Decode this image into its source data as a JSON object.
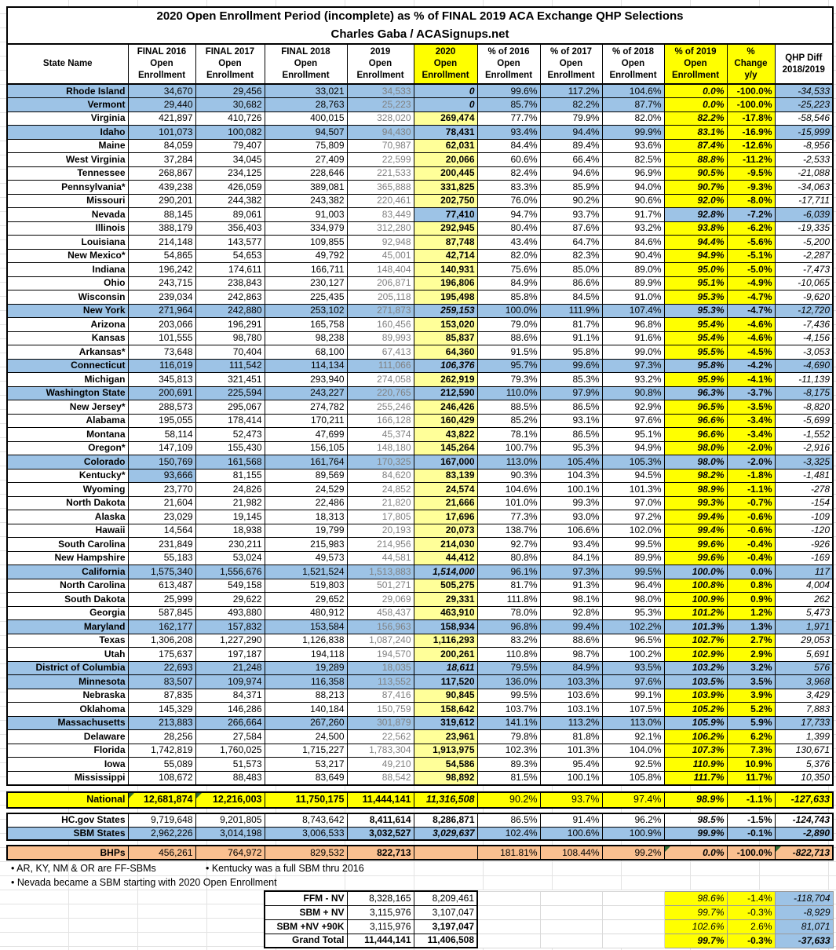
{
  "title": {
    "line1": "2020 Open Enrollment Period (incomplete) as % of FINAL 2019 ACA Exchange QHP Selections",
    "line2": "Charles Gaba / ACASignups.net"
  },
  "columns": [
    {
      "key": "state",
      "label": "State Name"
    },
    {
      "key": "final-2016",
      "label": "FINAL 2016\nOpen\nEnrollment"
    },
    {
      "key": "final-2017",
      "label": "FINAL 2017\nOpen\nEnrollment"
    },
    {
      "key": "final-2018",
      "label": "FINAL 2018\nOpen\nEnrollment"
    },
    {
      "key": "oe-2019",
      "label": "2019\nOpen\nEnrollment"
    },
    {
      "key": "oe-2020",
      "label": "2020\nOpen\nEnrollment"
    },
    {
      "key": "pct-2016",
      "label": "% of 2016\nOpen\nEnrollment"
    },
    {
      "key": "pct-2017",
      "label": "% of 2017\nOpen\nEnrollment"
    },
    {
      "key": "pct-2018",
      "label": "% of 2018\nOpen\nEnrollment"
    },
    {
      "key": "pct-2019",
      "label": "% of 2019\nOpen\nEnrollment"
    },
    {
      "key": "pct-change",
      "label": "%\nChange\ny/y"
    },
    {
      "key": "qhp-diff",
      "label": "QHP Diff\n2018/2019"
    }
  ],
  "main_table": {
    "rows": [
      {
        "state": "Rhode Island",
        "bg": "b",
        "est": 1,
        "yp": 1,
        "values": [
          "34,670",
          "29,456",
          "33,021",
          "34,533",
          "0",
          "99.6%",
          "117.2%",
          "104.6%",
          "0.0%",
          "-100.0%",
          "-34,533"
        ]
      },
      {
        "state": "Vermont",
        "bg": "b",
        "est": 1,
        "yp": 1,
        "values": [
          "29,440",
          "30,682",
          "28,763",
          "25,223",
          "0",
          "85.7%",
          "82.2%",
          "87.7%",
          "0.0%",
          "-100.0%",
          "-25,223"
        ]
      },
      {
        "state": "Virginia",
        "bg": "w",
        "values": [
          "421,897",
          "410,726",
          "400,015",
          "328,020",
          "269,474",
          "77.7%",
          "79.9%",
          "82.0%",
          "82.2%",
          "-17.8%",
          "-58,546"
        ]
      },
      {
        "state": "Idaho",
        "bg": "b",
        "yp": 1,
        "values": [
          "101,073",
          "100,082",
          "94,507",
          "94,430",
          "78,431",
          "93.4%",
          "94.4%",
          "99.9%",
          "83.1%",
          "-16.9%",
          "-15,999"
        ]
      },
      {
        "state": "Maine",
        "bg": "w",
        "values": [
          "84,059",
          "79,407",
          "75,809",
          "70,987",
          "62,031",
          "84.4%",
          "89.4%",
          "93.6%",
          "87.4%",
          "-12.6%",
          "-8,956"
        ]
      },
      {
        "state": "West Virginia",
        "bg": "w",
        "values": [
          "37,284",
          "34,045",
          "27,409",
          "22,599",
          "20,066",
          "60.6%",
          "66.4%",
          "82.5%",
          "88.8%",
          "-11.2%",
          "-2,533"
        ]
      },
      {
        "state": "Tennessee",
        "bg": "w",
        "values": [
          "268,867",
          "234,125",
          "228,646",
          "221,533",
          "200,445",
          "82.4%",
          "94.6%",
          "96.9%",
          "90.5%",
          "-9.5%",
          "-21,088"
        ]
      },
      {
        "state": "Pennsylvania*",
        "bg": "w",
        "values": [
          "439,238",
          "426,059",
          "389,081",
          "365,888",
          "331,825",
          "83.3%",
          "85.9%",
          "94.0%",
          "90.7%",
          "-9.3%",
          "-34,063"
        ]
      },
      {
        "state": "Missouri",
        "bg": "w",
        "values": [
          "290,201",
          "244,382",
          "243,382",
          "220,461",
          "202,750",
          "76.0%",
          "90.2%",
          "90.6%",
          "92.0%",
          "-8.0%",
          "-17,711"
        ]
      },
      {
        "state": "Nevada",
        "bg": "w",
        "sp": "nv",
        "values": [
          "88,145",
          "89,061",
          "91,003",
          "83,449",
          "77,410",
          "94.7%",
          "93.7%",
          "91.7%",
          "92.8%",
          "-7.2%",
          "-6,039"
        ]
      },
      {
        "state": "Illinois",
        "bg": "w",
        "values": [
          "388,179",
          "356,403",
          "334,979",
          "312,280",
          "292,945",
          "80.4%",
          "87.6%",
          "93.2%",
          "93.8%",
          "-6.2%",
          "-19,335"
        ]
      },
      {
        "state": "Louisiana",
        "bg": "w",
        "values": [
          "214,148",
          "143,577",
          "109,855",
          "92,948",
          "87,748",
          "43.4%",
          "64.7%",
          "84.6%",
          "94.4%",
          "-5.6%",
          "-5,200"
        ]
      },
      {
        "state": "New Mexico*",
        "bg": "w",
        "values": [
          "54,865",
          "54,653",
          "49,792",
          "45,001",
          "42,714",
          "82.0%",
          "82.3%",
          "90.4%",
          "94.9%",
          "-5.1%",
          "-2,287"
        ]
      },
      {
        "state": "Indiana",
        "bg": "w",
        "values": [
          "196,242",
          "174,611",
          "166,711",
          "148,404",
          "140,931",
          "75.6%",
          "85.0%",
          "89.0%",
          "95.0%",
          "-5.0%",
          "-7,473"
        ]
      },
      {
        "state": "Ohio",
        "bg": "w",
        "values": [
          "243,715",
          "238,843",
          "230,127",
          "206,871",
          "196,806",
          "84.9%",
          "86.6%",
          "89.9%",
          "95.1%",
          "-4.9%",
          "-10,065"
        ]
      },
      {
        "state": "Wisconsin",
        "bg": "w",
        "values": [
          "239,034",
          "242,863",
          "225,435",
          "205,118",
          "195,498",
          "85.8%",
          "84.5%",
          "91.0%",
          "95.3%",
          "-4.7%",
          "-9,620"
        ]
      },
      {
        "state": "New York",
        "bg": "b",
        "est": 1,
        "values": [
          "271,964",
          "242,880",
          "253,102",
          "271,873",
          "259,153",
          "100.0%",
          "111.9%",
          "107.4%",
          "95.3%",
          "-4.7%",
          "-12,720"
        ]
      },
      {
        "state": "Arizona",
        "bg": "w",
        "values": [
          "203,066",
          "196,291",
          "165,758",
          "160,456",
          "153,020",
          "79.0%",
          "81.7%",
          "96.8%",
          "95.4%",
          "-4.6%",
          "-7,436"
        ]
      },
      {
        "state": "Kansas",
        "bg": "w",
        "values": [
          "101,555",
          "98,780",
          "98,238",
          "89,993",
          "85,837",
          "88.6%",
          "91.1%",
          "91.6%",
          "95.4%",
          "-4.6%",
          "-4,156"
        ]
      },
      {
        "state": "Arkansas*",
        "bg": "w",
        "values": [
          "73,648",
          "70,404",
          "68,100",
          "67,413",
          "64,360",
          "91.5%",
          "95.8%",
          "99.0%",
          "95.5%",
          "-4.5%",
          "-3,053"
        ]
      },
      {
        "state": "Connecticut",
        "bg": "b",
        "est": 1,
        "values": [
          "116,019",
          "111,542",
          "114,134",
          "111,066",
          "106,376",
          "95.7%",
          "99.6%",
          "97.3%",
          "95.8%",
          "-4.2%",
          "-4,690"
        ]
      },
      {
        "state": "Michigan",
        "bg": "w",
        "values": [
          "345,813",
          "321,451",
          "293,940",
          "274,058",
          "262,919",
          "79.3%",
          "85.3%",
          "93.2%",
          "95.9%",
          "-4.1%",
          "-11,139"
        ]
      },
      {
        "state": "Washington State",
        "bg": "b",
        "values": [
          "200,691",
          "225,594",
          "243,227",
          "220,765",
          "212,590",
          "110.0%",
          "97.9%",
          "90.8%",
          "96.3%",
          "-3.7%",
          "-8,175"
        ]
      },
      {
        "state": "New Jersey*",
        "bg": "w",
        "values": [
          "288,573",
          "295,067",
          "274,782",
          "255,246",
          "246,426",
          "88.5%",
          "86.5%",
          "92.9%",
          "96.5%",
          "-3.5%",
          "-8,820"
        ]
      },
      {
        "state": "Alabama",
        "bg": "w",
        "values": [
          "195,055",
          "178,414",
          "170,211",
          "166,128",
          "160,429",
          "85.2%",
          "93.1%",
          "97.6%",
          "96.6%",
          "-3.4%",
          "-5,699"
        ]
      },
      {
        "state": "Montana",
        "bg": "w",
        "values": [
          "58,114",
          "52,473",
          "47,699",
          "45,374",
          "43,822",
          "78.1%",
          "86.5%",
          "95.1%",
          "96.6%",
          "-3.4%",
          "-1,552"
        ]
      },
      {
        "state": "Oregon*",
        "bg": "w",
        "values": [
          "147,109",
          "155,430",
          "156,105",
          "148,180",
          "145,264",
          "100.7%",
          "95.3%",
          "94.9%",
          "98.0%",
          "-2.0%",
          "-2,916"
        ]
      },
      {
        "state": "Colorado",
        "bg": "b",
        "values": [
          "150,769",
          "161,568",
          "161,764",
          "170,325",
          "167,000",
          "113.0%",
          "105.4%",
          "105.3%",
          "98.0%",
          "-2.0%",
          "-3,325"
        ]
      },
      {
        "state": "Kentucky*",
        "bg": "w",
        "sp": "ky",
        "values": [
          "93,666",
          "81,155",
          "89,569",
          "84,620",
          "83,139",
          "90.3%",
          "104.3%",
          "94.5%",
          "98.2%",
          "-1.8%",
          "-1,481"
        ]
      },
      {
        "state": "Wyoming",
        "bg": "w",
        "values": [
          "23,770",
          "24,826",
          "24,529",
          "24,852",
          "24,574",
          "104.6%",
          "100.1%",
          "101.3%",
          "98.9%",
          "-1.1%",
          "-278"
        ]
      },
      {
        "state": "North Dakota",
        "bg": "w",
        "values": [
          "21,604",
          "21,982",
          "22,486",
          "21,820",
          "21,666",
          "101.0%",
          "99.3%",
          "97.0%",
          "99.3%",
          "-0.7%",
          "-154"
        ]
      },
      {
        "state": "Alaska",
        "bg": "w",
        "values": [
          "23,029",
          "19,145",
          "18,313",
          "17,805",
          "17,696",
          "77.3%",
          "93.0%",
          "97.2%",
          "99.4%",
          "-0.6%",
          "-109"
        ]
      },
      {
        "state": "Hawaii",
        "bg": "w",
        "values": [
          "14,564",
          "18,938",
          "19,799",
          "20,193",
          "20,073",
          "138.7%",
          "106.6%",
          "102.0%",
          "99.4%",
          "-0.6%",
          "-120"
        ]
      },
      {
        "state": "South Carolina",
        "bg": "w",
        "values": [
          "231,849",
          "230,211",
          "215,983",
          "214,956",
          "214,030",
          "92.7%",
          "93.4%",
          "99.5%",
          "99.6%",
          "-0.4%",
          "-926"
        ]
      },
      {
        "state": "New Hampshire",
        "bg": "w",
        "values": [
          "55,183",
          "53,024",
          "49,573",
          "44,581",
          "44,412",
          "80.8%",
          "84.1%",
          "89.9%",
          "99.6%",
          "-0.4%",
          "-169"
        ]
      },
      {
        "state": "California",
        "bg": "b",
        "est": 1,
        "values": [
          "1,575,340",
          "1,556,676",
          "1,521,524",
          "1,513,883",
          "1,514,000",
          "96.1%",
          "97.3%",
          "99.5%",
          "100.0%",
          "0.0%",
          "117"
        ]
      },
      {
        "state": "North Carolina",
        "bg": "w",
        "values": [
          "613,487",
          "549,158",
          "519,803",
          "501,271",
          "505,275",
          "81.7%",
          "91.3%",
          "96.4%",
          "100.8%",
          "0.8%",
          "4,004"
        ]
      },
      {
        "state": "South Dakota",
        "bg": "w",
        "values": [
          "25,999",
          "29,622",
          "29,652",
          "29,069",
          "29,331",
          "111.8%",
          "98.1%",
          "98.0%",
          "100.9%",
          "0.9%",
          "262"
        ]
      },
      {
        "state": "Georgia",
        "bg": "w",
        "values": [
          "587,845",
          "493,880",
          "480,912",
          "458,437",
          "463,910",
          "78.0%",
          "92.8%",
          "95.3%",
          "101.2%",
          "1.2%",
          "5,473"
        ]
      },
      {
        "state": "Maryland",
        "bg": "b",
        "values": [
          "162,177",
          "157,832",
          "153,584",
          "156,963",
          "158,934",
          "96.8%",
          "99.4%",
          "102.2%",
          "101.3%",
          "1.3%",
          "1,971"
        ]
      },
      {
        "state": "Texas",
        "bg": "w",
        "values": [
          "1,306,208",
          "1,227,290",
          "1,126,838",
          "1,087,240",
          "1,116,293",
          "83.2%",
          "88.6%",
          "96.5%",
          "102.7%",
          "2.7%",
          "29,053"
        ]
      },
      {
        "state": "Utah",
        "bg": "w",
        "values": [
          "175,637",
          "197,187",
          "194,118",
          "194,570",
          "200,261",
          "110.8%",
          "98.7%",
          "100.2%",
          "102.9%",
          "2.9%",
          "5,691"
        ]
      },
      {
        "state": "District of Columbia",
        "bg": "b",
        "est": 1,
        "values": [
          "22,693",
          "21,248",
          "19,289",
          "18,035",
          "18,611",
          "79.5%",
          "84.9%",
          "93.5%",
          "103.2%",
          "3.2%",
          "576"
        ]
      },
      {
        "state": "Minnesota",
        "bg": "b",
        "values": [
          "83,507",
          "109,974",
          "116,358",
          "113,552",
          "117,520",
          "136.0%",
          "103.3%",
          "97.6%",
          "103.5%",
          "3.5%",
          "3,968"
        ]
      },
      {
        "state": "Nebraska",
        "bg": "w",
        "values": [
          "87,835",
          "84,371",
          "88,213",
          "87,416",
          "90,845",
          "99.5%",
          "103.6%",
          "99.1%",
          "103.9%",
          "3.9%",
          "3,429"
        ]
      },
      {
        "state": "Oklahoma",
        "bg": "w",
        "values": [
          "145,329",
          "146,286",
          "140,184",
          "150,759",
          "158,642",
          "103.7%",
          "103.1%",
          "107.5%",
          "105.2%",
          "5.2%",
          "7,883"
        ]
      },
      {
        "state": "Massachusetts",
        "bg": "b",
        "values": [
          "213,883",
          "266,664",
          "267,260",
          "301,879",
          "319,612",
          "141.1%",
          "113.2%",
          "113.0%",
          "105.9%",
          "5.9%",
          "17,733"
        ]
      },
      {
        "state": "Delaware",
        "bg": "w",
        "values": [
          "28,256",
          "27,584",
          "24,500",
          "22,562",
          "23,961",
          "79.8%",
          "81.8%",
          "92.1%",
          "106.2%",
          "6.2%",
          "1,399"
        ]
      },
      {
        "state": "Florida",
        "bg": "w",
        "values": [
          "1,742,819",
          "1,760,025",
          "1,715,227",
          "1,783,304",
          "1,913,975",
          "102.3%",
          "101.3%",
          "104.0%",
          "107.3%",
          "7.3%",
          "130,671"
        ]
      },
      {
        "state": "Iowa",
        "bg": "w",
        "values": [
          "55,089",
          "51,573",
          "53,217",
          "49,210",
          "54,586",
          "89.3%",
          "95.4%",
          "92.5%",
          "110.9%",
          "10.9%",
          "5,376"
        ]
      },
      {
        "state": "Mississippi",
        "bg": "w",
        "values": [
          "108,672",
          "88,483",
          "83,649",
          "88,542",
          "98,892",
          "81.5%",
          "100.1%",
          "105.8%",
          "111.7%",
          "11.7%",
          "10,350"
        ]
      }
    ]
  },
  "summary": {
    "national": {
      "label": "National",
      "values": [
        "12,681,874",
        "12,216,003",
        "11,750,175",
        "11,444,141",
        "11,316,508",
        "90.2%",
        "93.7%",
        "97.4%",
        "98.9%",
        "-1.1%",
        "-127,633"
      ]
    },
    "hcgov": {
      "label": "HC.gov States",
      "values": [
        "9,719,648",
        "9,201,805",
        "8,743,642",
        "8,411,614",
        "8,286,871",
        "86.5%",
        "91.4%",
        "96.2%",
        "98.5%",
        "-1.5%",
        "-124,743"
      ]
    },
    "sbm": {
      "label": "SBM States",
      "values": [
        "2,962,226",
        "3,014,198",
        "3,006,533",
        "3,032,527",
        "3,029,637",
        "102.4%",
        "100.6%",
        "100.9%",
        "99.9%",
        "-0.1%",
        "-2,890"
      ]
    },
    "bhps": {
      "label": "BHPs",
      "values": [
        "456,261",
        "764,972",
        "829,532",
        "822,713",
        "",
        "181.81%",
        "108.44%",
        "99.2%",
        "0.0%",
        "-100.0%",
        "-822,713"
      ]
    }
  },
  "footnotes": [
    "• AR, KY, NM & OR are FF-SBMs",
    "• Kentucky was a full SBM thru 2016",
    "• Nevada became a SBM starting with 2020 Open Enrollment"
  ],
  "footer_table": {
    "rows": [
      {
        "label": "FFM - NV",
        "oe_2019": "8,328,165",
        "oe_2020": "8,209,461",
        "pct_2019": "98.6%",
        "pct_change": "-1.4%",
        "qhp_diff": "-118,704"
      },
      {
        "label": "SBM + NV",
        "oe_2019": "3,115,976",
        "oe_2020": "3,107,047",
        "pct_2019": "99.7%",
        "pct_change": "-0.3%",
        "qhp_diff": "-8,929"
      },
      {
        "label": "SBM +NV +90K",
        "oe_2019": "3,115,976",
        "oe_2020": "3,197,047",
        "pct_2019": "102.6%",
        "pct_change": "2.6%",
        "qhp_diff": "81,071"
      },
      {
        "label": "Grand Total",
        "oe_2019": "11,444,141",
        "oe_2020": "11,406,508",
        "pct_2019": "99.7%",
        "pct_change": "-0.3%",
        "qhp_diff": "-37,633"
      }
    ]
  },
  "colors": {
    "state_row_blue": "#9DC3E6",
    "highlight_yellow": "#FFFF00",
    "pale_yellow_2020": "#FFFF99",
    "bhp_orange": "#FAC090",
    "muted_gray_2019_text": "#808080",
    "error_flag_green": "#2E6B33"
  }
}
